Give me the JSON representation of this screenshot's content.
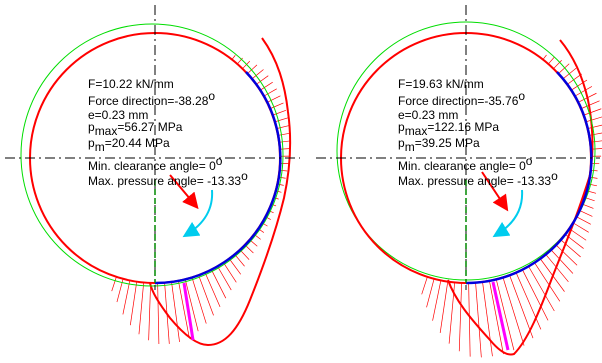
{
  "colors": {
    "background": "#ffffff",
    "bearing_circle": "#00dd00",
    "journal_circle": "#ff0000",
    "contact_arc": "#0000dd",
    "pressure_hatch": "#ff0000",
    "max_pressure_line": "#ff00ff",
    "force_arrow": "#ff0000",
    "rotation_arrow": "#00ccee",
    "centerline": "#000000",
    "clearance_line": "#008800"
  },
  "panels": [
    {
      "force_line": "F=10.22 kN/mm",
      "direction_line": "Force direction=-38.28",
      "direction_degree": "o",
      "eccentricity_line": "e=0.23 mm",
      "pmax_symbol": "p",
      "pmax_sub": "max",
      "pmax_value": "=56.27 MPa",
      "pm_symbol": "p",
      "pm_sub": "m",
      "pm_value": "=20.44 MPa",
      "clearance_line": "Min. clearance angle= 0",
      "clearance_degree": "o",
      "max_pressure_line": "Max. pressure angle= -13.33",
      "max_pressure_degree": "o"
    },
    {
      "force_line": "F=19.63 kN/mm",
      "direction_line": "Force direction=-35.76",
      "direction_degree": "o",
      "eccentricity_line": "e=0.23 mm",
      "pmax_symbol": "p",
      "pmax_sub": "max",
      "pmax_value": "=122.16 MPa",
      "pm_symbol": "p",
      "pm_sub": "m",
      "pm_value": "=39.25 MPa",
      "clearance_line": "Min. clearance angle= 0",
      "clearance_degree": "o",
      "max_pressure_line": "Max. pressure angle= -13.33",
      "max_pressure_degree": "o"
    }
  ]
}
